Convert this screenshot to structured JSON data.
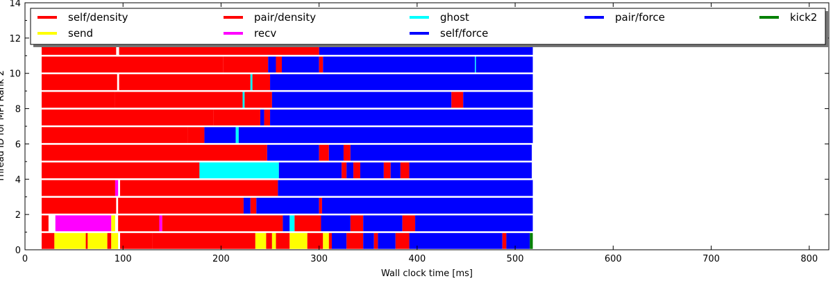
{
  "chart_data": {
    "type": "bar",
    "subtype": "horizontal-timeline",
    "title": "",
    "xlabel": "Wall clock time [ms]",
    "ylabel": "Thread ID for MPI Rank 2",
    "xlim": [
      0,
      820
    ],
    "ylim": [
      0,
      14
    ],
    "xticks": [
      0,
      100,
      200,
      300,
      400,
      500,
      600,
      700,
      800
    ],
    "yticks": [
      0,
      2,
      4,
      6,
      8,
      10,
      12,
      14
    ],
    "grid": false,
    "legend_position": "top",
    "legend": [
      {
        "name": "self/density",
        "color": "#ff0000"
      },
      {
        "name": "send",
        "color": "#ffff00"
      },
      {
        "name": "pair/density",
        "color": "#ff0000"
      },
      {
        "name": "recv",
        "color": "#ff00ff"
      },
      {
        "name": "ghost",
        "color": "#00ffff"
      },
      {
        "name": "self/force",
        "color": "#0000ff"
      },
      {
        "name": "pair/force",
        "color": "#0000ff"
      },
      {
        "name": "kick2",
        "color": "#008000"
      }
    ],
    "threads": [
      {
        "thread": 0,
        "tasks": [
          {
            "t": "self/density",
            "start": 17,
            "end": 30
          },
          {
            "t": "send",
            "start": 30,
            "end": 62
          },
          {
            "t": "self/density",
            "start": 62,
            "end": 64
          },
          {
            "t": "send",
            "start": 64,
            "end": 84
          },
          {
            "t": "self/density",
            "start": 84,
            "end": 88
          },
          {
            "t": "send",
            "start": 88,
            "end": 95
          },
          {
            "t": "self/density",
            "start": 97,
            "end": 130
          },
          {
            "t": "pair/density",
            "start": 130,
            "end": 235
          },
          {
            "t": "send",
            "start": 235,
            "end": 246
          },
          {
            "t": "pair/density",
            "start": 246,
            "end": 252
          },
          {
            "t": "send",
            "start": 252,
            "end": 256
          },
          {
            "t": "pair/density",
            "start": 256,
            "end": 270
          },
          {
            "t": "send",
            "start": 270,
            "end": 288
          },
          {
            "t": "pair/density",
            "start": 288,
            "end": 304
          },
          {
            "t": "send",
            "start": 304,
            "end": 310
          },
          {
            "t": "pair/density",
            "start": 310,
            "end": 313
          },
          {
            "t": "pair/force",
            "start": 313,
            "end": 328
          },
          {
            "t": "pair/density",
            "start": 328,
            "end": 345
          },
          {
            "t": "pair/force",
            "start": 345,
            "end": 356
          },
          {
            "t": "pair/density",
            "start": 356,
            "end": 360
          },
          {
            "t": "pair/force",
            "start": 360,
            "end": 378
          },
          {
            "t": "pair/density",
            "start": 378,
            "end": 392
          },
          {
            "t": "pair/force",
            "start": 392,
            "end": 487
          },
          {
            "t": "pair/density",
            "start": 487,
            "end": 491
          },
          {
            "t": "pair/force",
            "start": 491,
            "end": 515
          },
          {
            "t": "kick2",
            "start": 515,
            "end": 518
          }
        ]
      },
      {
        "thread": 1,
        "tasks": [
          {
            "t": "self/density",
            "start": 17,
            "end": 24
          },
          {
            "t": "recv",
            "start": 31,
            "end": 88
          },
          {
            "t": "send",
            "start": 88,
            "end": 92
          },
          {
            "t": "self/density",
            "start": 95,
            "end": 137
          },
          {
            "t": "recv",
            "start": 137,
            "end": 140
          },
          {
            "t": "pair/density",
            "start": 140,
            "end": 263
          },
          {
            "t": "self/force",
            "start": 263,
            "end": 270
          },
          {
            "t": "ghost",
            "start": 270,
            "end": 275
          },
          {
            "t": "pair/density",
            "start": 275,
            "end": 302
          },
          {
            "t": "pair/force",
            "start": 302,
            "end": 332
          },
          {
            "t": "pair/density",
            "start": 332,
            "end": 345
          },
          {
            "t": "pair/force",
            "start": 345,
            "end": 385
          },
          {
            "t": "pair/density",
            "start": 385,
            "end": 398
          },
          {
            "t": "pair/force",
            "start": 398,
            "end": 518
          }
        ]
      },
      {
        "thread": 2,
        "tasks": [
          {
            "t": "self/density",
            "start": 17,
            "end": 93
          },
          {
            "t": "self/density",
            "start": 95,
            "end": 223
          },
          {
            "t": "pair/force",
            "start": 223,
            "end": 230
          },
          {
            "t": "pair/density",
            "start": 230,
            "end": 236
          },
          {
            "t": "pair/force",
            "start": 236,
            "end": 300
          },
          {
            "t": "pair/density",
            "start": 300,
            "end": 303
          },
          {
            "t": "pair/force",
            "start": 303,
            "end": 518
          }
        ]
      },
      {
        "thread": 3,
        "tasks": [
          {
            "t": "self/density",
            "start": 17,
            "end": 92
          },
          {
            "t": "recv",
            "start": 92,
            "end": 95
          },
          {
            "t": "self/density",
            "start": 97,
            "end": 258
          },
          {
            "t": "pair/force",
            "start": 258,
            "end": 518
          }
        ]
      },
      {
        "thread": 4,
        "tasks": [
          {
            "t": "self/density",
            "start": 17,
            "end": 178
          },
          {
            "t": "ghost",
            "start": 178,
            "end": 259
          },
          {
            "t": "self/force",
            "start": 259,
            "end": 323
          },
          {
            "t": "pair/density",
            "start": 323,
            "end": 328
          },
          {
            "t": "pair/force",
            "start": 328,
            "end": 335
          },
          {
            "t": "pair/density",
            "start": 335,
            "end": 342
          },
          {
            "t": "pair/force",
            "start": 342,
            "end": 366
          },
          {
            "t": "pair/density",
            "start": 366,
            "end": 373
          },
          {
            "t": "pair/force",
            "start": 373,
            "end": 383
          },
          {
            "t": "pair/density",
            "start": 383,
            "end": 392
          },
          {
            "t": "pair/force",
            "start": 392,
            "end": 517
          }
        ]
      },
      {
        "thread": 5,
        "tasks": [
          {
            "t": "self/density",
            "start": 17,
            "end": 247
          },
          {
            "t": "self/force",
            "start": 247,
            "end": 300
          },
          {
            "t": "pair/density",
            "start": 300,
            "end": 310
          },
          {
            "t": "pair/force",
            "start": 310,
            "end": 325
          },
          {
            "t": "pair/density",
            "start": 325,
            "end": 332
          },
          {
            "t": "pair/force",
            "start": 332,
            "end": 517
          }
        ]
      },
      {
        "thread": 6,
        "tasks": [
          {
            "t": "self/density",
            "start": 17,
            "end": 166
          },
          {
            "t": "pair/density",
            "start": 166,
            "end": 183
          },
          {
            "t": "pair/force",
            "start": 183,
            "end": 215
          },
          {
            "t": "ghost",
            "start": 215,
            "end": 218
          },
          {
            "t": "pair/force",
            "start": 218,
            "end": 518
          }
        ]
      },
      {
        "thread": 7,
        "tasks": [
          {
            "t": "self/density",
            "start": 17,
            "end": 192
          },
          {
            "t": "pair/density",
            "start": 192,
            "end": 240
          },
          {
            "t": "pair/force",
            "start": 240,
            "end": 244
          },
          {
            "t": "pair/density",
            "start": 244,
            "end": 250
          },
          {
            "t": "pair/force",
            "start": 250,
            "end": 518
          }
        ]
      },
      {
        "thread": 8,
        "tasks": [
          {
            "t": "self/density",
            "start": 17,
            "end": 92
          },
          {
            "t": "pair/density",
            "start": 92,
            "end": 222
          },
          {
            "t": "ghost",
            "start": 222,
            "end": 224
          },
          {
            "t": "pair/density",
            "start": 224,
            "end": 252
          },
          {
            "t": "pair/force",
            "start": 252,
            "end": 435
          },
          {
            "t": "pair/density",
            "start": 435,
            "end": 447
          },
          {
            "t": "pair/force",
            "start": 447,
            "end": 518
          }
        ]
      },
      {
        "thread": 9,
        "tasks": [
          {
            "t": "self/density",
            "start": 17,
            "end": 94
          },
          {
            "t": "pair/density",
            "start": 96,
            "end": 230
          },
          {
            "t": "ghost",
            "start": 230,
            "end": 232
          },
          {
            "t": "pair/density",
            "start": 232,
            "end": 250
          },
          {
            "t": "pair/force",
            "start": 250,
            "end": 518
          }
        ]
      },
      {
        "thread": 10,
        "tasks": [
          {
            "t": "self/density",
            "start": 17,
            "end": 202
          },
          {
            "t": "pair/density",
            "start": 202,
            "end": 248
          },
          {
            "t": "pair/force",
            "start": 248,
            "end": 256
          },
          {
            "t": "pair/density",
            "start": 256,
            "end": 262
          },
          {
            "t": "pair/force",
            "start": 262,
            "end": 300
          },
          {
            "t": "pair/density",
            "start": 300,
            "end": 304
          },
          {
            "t": "pair/force",
            "start": 304,
            "end": 459
          },
          {
            "t": "ghost",
            "start": 459,
            "end": 460
          },
          {
            "t": "pair/force",
            "start": 460,
            "end": 518
          }
        ]
      },
      {
        "thread": 11,
        "tasks": [
          {
            "t": "self/density",
            "start": 17,
            "end": 93
          },
          {
            "t": "pair/density",
            "start": 96,
            "end": 300
          },
          {
            "t": "pair/force",
            "start": 300,
            "end": 518
          }
        ]
      }
    ]
  }
}
